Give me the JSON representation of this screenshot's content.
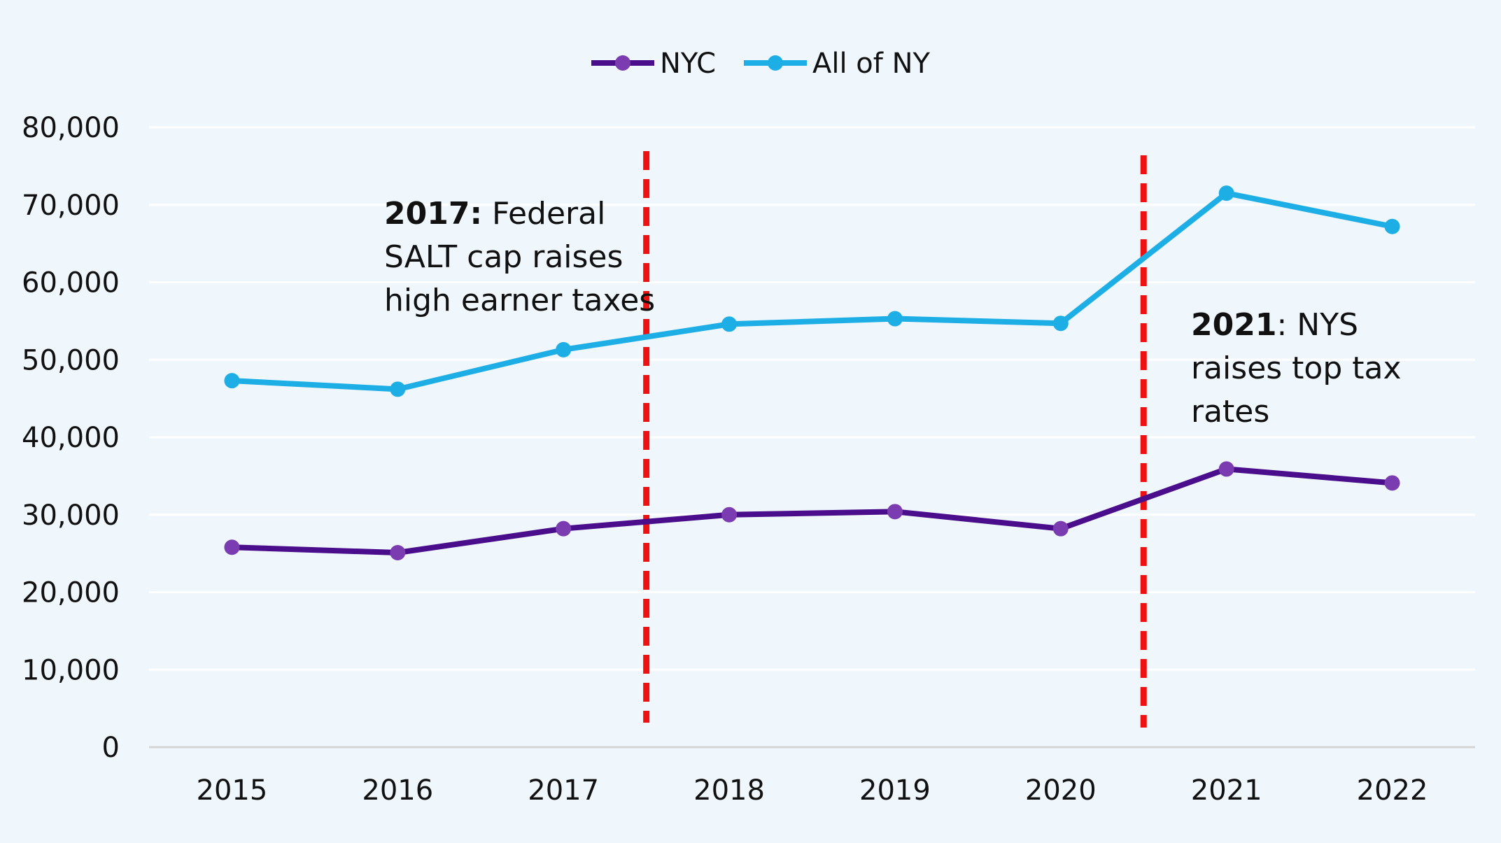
{
  "chart_data": {
    "type": "line",
    "title": "",
    "xlabel": "",
    "ylabel": "",
    "categories": [
      "2015",
      "2016",
      "2017",
      "2018",
      "2019",
      "2020",
      "2021",
      "2022"
    ],
    "ylim": [
      0,
      80000
    ],
    "yticks": [
      0,
      10000,
      20000,
      30000,
      40000,
      50000,
      60000,
      70000,
      80000
    ],
    "ytick_labels": [
      "0",
      "10,000",
      "20,000",
      "30,000",
      "40,000",
      "50,000",
      "60,000",
      "70,000",
      "80,000"
    ],
    "grid": true,
    "legend_position": "top-center",
    "series": [
      {
        "name": "NYC",
        "color": "#4a0d8c",
        "marker_color": "#7a3cb0",
        "values": [
          25800,
          25100,
          28200,
          30000,
          30400,
          28200,
          35900,
          34100
        ]
      },
      {
        "name": "All of NY",
        "color": "#1eaee6",
        "marker_color": "#1eaee6",
        "values": [
          47300,
          46200,
          51300,
          54600,
          55300,
          54700,
          71500,
          67200
        ]
      }
    ],
    "reference_lines": [
      {
        "after_category": "2017",
        "color": "#ee1111",
        "style": "dashed"
      },
      {
        "after_category": "2020",
        "color": "#ee1111",
        "style": "dashed"
      }
    ],
    "annotations": [
      {
        "bold": "2017:",
        "lines": [
          " Federal",
          "SALT cap raises",
          "high earner taxes"
        ]
      },
      {
        "bold": "2021",
        "lines": [
          ": NYS",
          "raises top tax",
          "rates"
        ]
      }
    ]
  }
}
